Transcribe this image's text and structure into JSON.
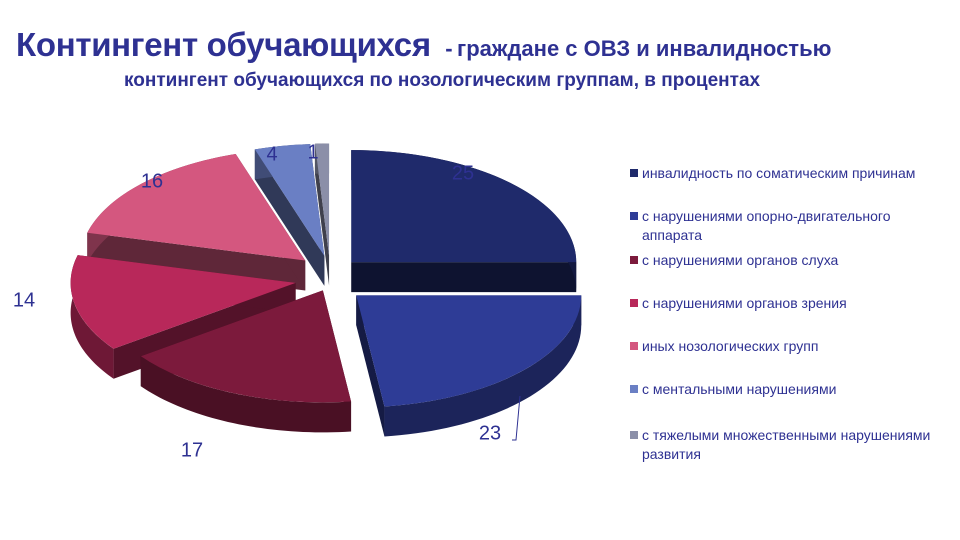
{
  "header": {
    "title": "Контингент обучающихся",
    "dash": "-",
    "title_suffix": "граждане с ОВЗ и инвалидностью",
    "subtitle": "контингент обучающихся по нозологическим группам, в процентах"
  },
  "chart_data": {
    "type": "pie",
    "exploded": true,
    "three_d": true,
    "legend_position": "right",
    "slices": [
      {
        "label": "инвалидность  по соматическим причинам",
        "value": 25,
        "color": "#1f2a6b"
      },
      {
        "label": "с нарушениями  опорно-двигательного аппарата",
        "value": 23,
        "color": "#2e3c96"
      },
      {
        "label": "с нарушениями  органов слуха",
        "value": 17,
        "color": "#7c1a3c"
      },
      {
        "label": "с нарушениями  органов зрения",
        "value": 14,
        "color": "#b8285a"
      },
      {
        "label": "иных  нозологических  групп",
        "value": 16,
        "color": "#d4577f"
      },
      {
        "label": "с ментальными  нарушениями",
        "value": 4,
        "color": "#6a7fc4"
      },
      {
        "label": "с тяжелыми  множественными нарушениями  развития",
        "value": 1,
        "color": "#8b8fa8"
      }
    ]
  }
}
